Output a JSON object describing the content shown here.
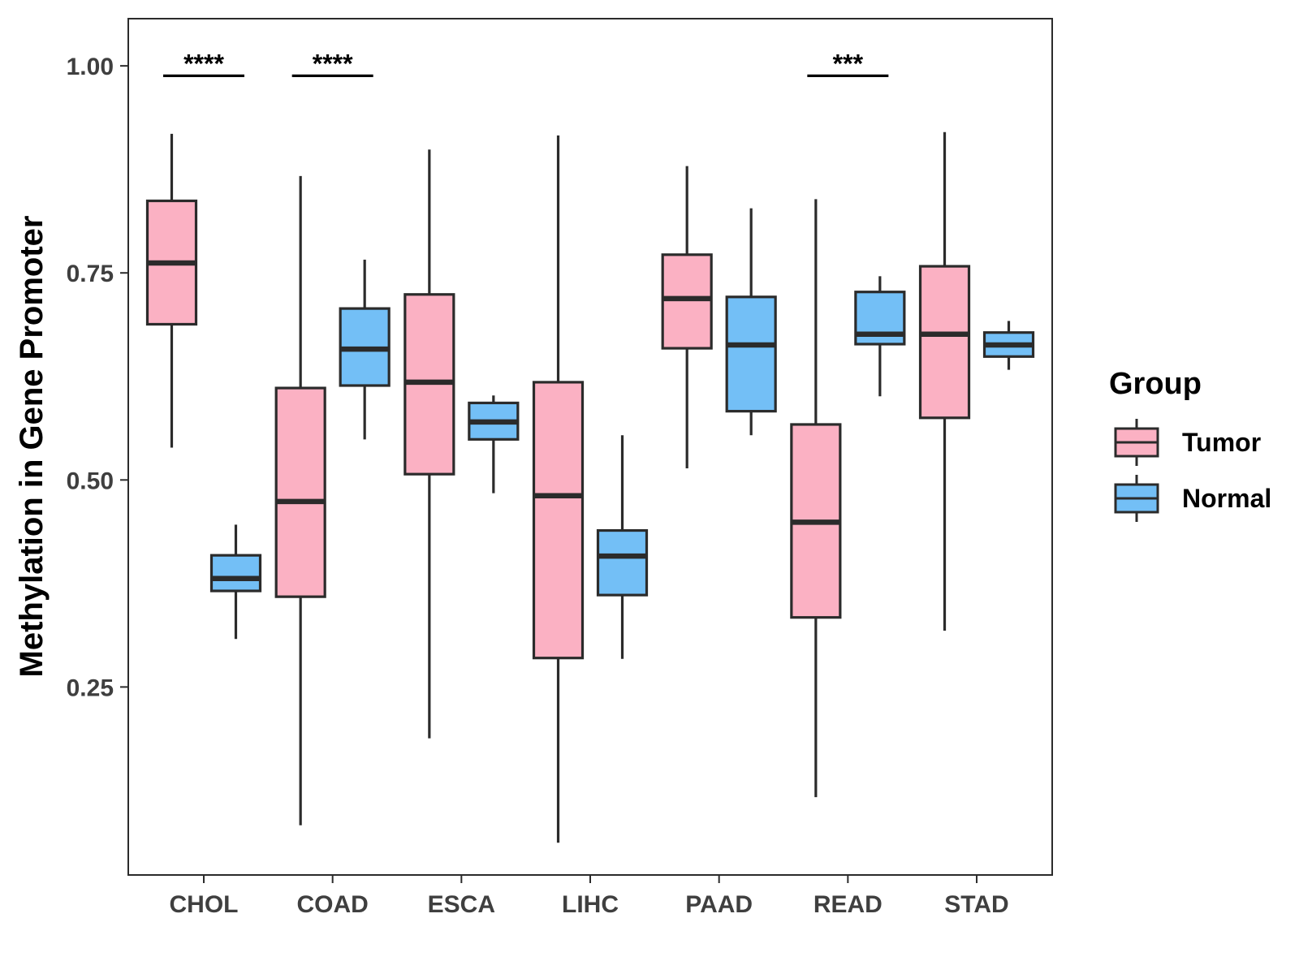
{
  "chart_data": {
    "type": "boxplot",
    "title": "",
    "xlabel": "",
    "ylabel": "Methylation in Gene Promoter",
    "ylim": [
      0.023,
      1.057
    ],
    "yticks": [
      {
        "value": 0.25,
        "label": "0.25"
      },
      {
        "value": 0.5,
        "label": "0.50"
      },
      {
        "value": 0.75,
        "label": "0.75"
      },
      {
        "value": 1.0,
        "label": "1.00"
      }
    ],
    "categories": [
      "CHOL",
      "COAD",
      "ESCA",
      "LIHC",
      "PAAD",
      "READ",
      "STAD"
    ],
    "legend": {
      "title": "Group",
      "placement": "right",
      "entries": [
        {
          "name": "Tumor",
          "color": "#FBB1C3"
        },
        {
          "name": "Normal",
          "color": "#73BFF6"
        }
      ]
    },
    "series": [
      {
        "name": "Tumor",
        "color": "#FBB1C3",
        "boxes": [
          {
            "category": "CHOL",
            "min": 0.539,
            "q1": 0.688,
            "median": 0.762,
            "q3": 0.837,
            "max": 0.918
          },
          {
            "category": "COAD",
            "min": 0.083,
            "q1": 0.359,
            "median": 0.474,
            "q3": 0.611,
            "max": 0.867
          },
          {
            "category": "ESCA",
            "min": 0.188,
            "q1": 0.507,
            "median": 0.618,
            "q3": 0.724,
            "max": 0.899
          },
          {
            "category": "LIHC",
            "min": 0.062,
            "q1": 0.285,
            "median": 0.481,
            "q3": 0.618,
            "max": 0.916
          },
          {
            "category": "PAAD",
            "min": 0.514,
            "q1": 0.659,
            "median": 0.719,
            "q3": 0.772,
            "max": 0.879
          },
          {
            "category": "READ",
            "min": 0.117,
            "q1": 0.334,
            "median": 0.449,
            "q3": 0.567,
            "max": 0.839
          },
          {
            "category": "STAD",
            "min": 0.318,
            "q1": 0.575,
            "median": 0.676,
            "q3": 0.758,
            "max": 0.92
          }
        ]
      },
      {
        "name": "Normal",
        "color": "#73BFF6",
        "boxes": [
          {
            "category": "CHOL",
            "min": 0.308,
            "q1": 0.366,
            "median": 0.381,
            "q3": 0.409,
            "max": 0.446
          },
          {
            "category": "COAD",
            "min": 0.549,
            "q1": 0.614,
            "median": 0.658,
            "q3": 0.707,
            "max": 0.766
          },
          {
            "category": "ESCA",
            "min": 0.484,
            "q1": 0.549,
            "median": 0.57,
            "q3": 0.593,
            "max": 0.602
          },
          {
            "category": "LIHC",
            "min": 0.284,
            "q1": 0.361,
            "median": 0.408,
            "q3": 0.439,
            "max": 0.554
          },
          {
            "category": "PAAD",
            "min": 0.554,
            "q1": 0.583,
            "median": 0.663,
            "q3": 0.721,
            "max": 0.828
          },
          {
            "category": "READ",
            "min": 0.601,
            "q1": 0.664,
            "median": 0.676,
            "q3": 0.727,
            "max": 0.746
          },
          {
            "category": "STAD",
            "min": 0.633,
            "q1": 0.649,
            "median": 0.663,
            "q3": 0.678,
            "max": 0.692
          }
        ]
      }
    ],
    "annotations": [
      {
        "category": "CHOL",
        "label": "****",
        "y": 0.988
      },
      {
        "category": "COAD",
        "label": "****",
        "y": 0.988
      },
      {
        "category": "READ",
        "label": "***",
        "y": 0.988
      }
    ]
  }
}
